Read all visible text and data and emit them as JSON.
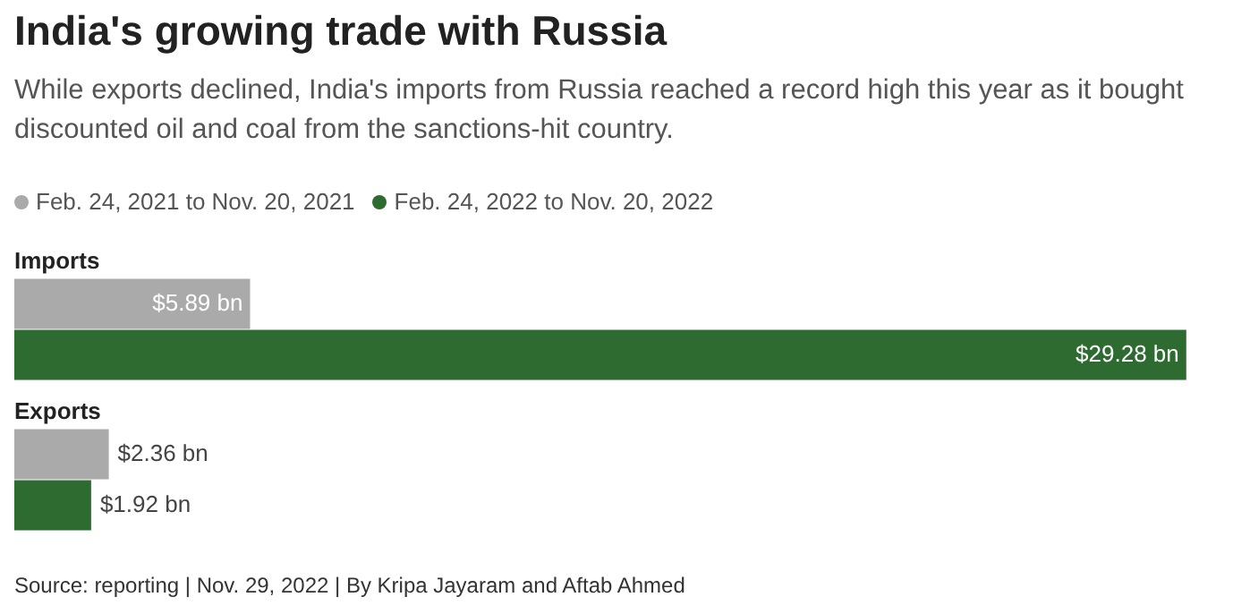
{
  "chart_data": {
    "type": "bar",
    "orientation": "horizontal",
    "title": "India's growing trade with Russia",
    "subtitle": "While exports declined, India's imports from Russia reached a record high this year as it bought discounted oil and coal from the sanctions-hit country.",
    "categories": [
      "Imports",
      "Exports"
    ],
    "legend": "top left",
    "series": [
      {
        "name": "Feb. 24, 2021 to Nov. 20, 2021",
        "color": "#aaaaaa",
        "values": [
          5.89,
          2.36
        ],
        "value_labels": [
          "$5.89 bn",
          "$2.36 bn"
        ]
      },
      {
        "name": "Feb. 24, 2022 to Nov. 20, 2022",
        "color": "#2e6b30",
        "values": [
          29.28,
          1.92
        ],
        "value_labels": [
          "$29.28 bn",
          "$1.92 bn"
        ]
      }
    ],
    "annotations": [
      "Source: reporting | Nov. 29, 2022 | By Kripa Jayaram and Aftab Ahmed"
    ]
  }
}
